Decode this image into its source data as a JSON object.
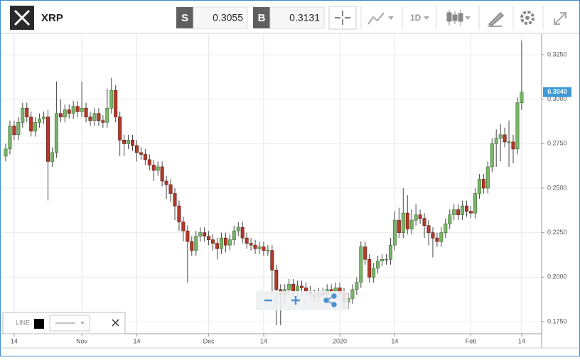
{
  "header": {
    "symbol": "XRP",
    "sell_label": "S",
    "sell_price": "0.3055",
    "buy_label": "B",
    "buy_price": "0.3131",
    "interval": "1D"
  },
  "line_panel": {
    "label": "LINE:"
  },
  "chart_data": {
    "type": "candlestick",
    "categories": [
      null,
      null,
      "14",
      null,
      null,
      null,
      null,
      null,
      null,
      null,
      null,
      null,
      null,
      null,
      null,
      null,
      null,
      null,
      "Nov",
      null,
      null,
      null,
      null,
      null,
      null,
      null,
      null,
      null,
      null,
      null,
      null,
      "14",
      null,
      null,
      null,
      null,
      null,
      null,
      null,
      null,
      null,
      null,
      null,
      null,
      null,
      null,
      null,
      null,
      "Dec",
      null,
      null,
      null,
      null,
      null,
      null,
      null,
      null,
      null,
      null,
      null,
      null,
      "14",
      null,
      null,
      null,
      null,
      null,
      null,
      null,
      null,
      null,
      null,
      null,
      null,
      null,
      null,
      null,
      null,
      null,
      "2020",
      null,
      null,
      null,
      null,
      null,
      null,
      null,
      null,
      null,
      null,
      null,
      null,
      "14",
      null,
      null,
      null,
      null,
      null,
      null,
      null,
      null,
      null,
      null,
      null,
      null,
      null,
      null,
      null,
      null,
      null,
      "Feb",
      null,
      null,
      null,
      null,
      null,
      null,
      null,
      null,
      null,
      null,
      null,
      "14"
    ],
    "open": [
      0.268,
      0.272,
      0.285,
      0.28,
      0.287,
      0.295,
      0.29,
      0.282,
      0.287,
      0.289,
      0.29,
      0.265,
      0.27,
      0.292,
      0.29,
      0.294,
      0.292,
      0.296,
      0.293,
      0.295,
      0.29,
      0.288,
      0.292,
      0.288,
      0.287,
      0.295,
      0.305,
      0.29,
      0.277,
      0.275,
      0.277,
      0.274,
      0.27,
      0.269,
      0.266,
      0.263,
      0.26,
      0.262,
      0.254,
      0.252,
      0.247,
      0.24,
      0.231,
      0.226,
      0.22,
      0.215,
      0.223,
      0.225,
      0.223,
      0.221,
      0.219,
      0.216,
      0.222,
      0.218,
      0.221,
      0.226,
      0.228,
      0.222,
      0.219,
      0.218,
      0.216,
      0.217,
      0.215,
      0.215,
      0.204,
      0.193,
      0.19,
      0.193,
      0.196,
      0.192,
      0.195,
      0.194,
      0.192,
      0.19,
      0.189,
      0.191,
      0.19,
      0.193,
      0.192,
      0.194,
      0.191,
      0.186,
      0.188,
      0.193,
      0.197,
      0.217,
      0.21,
      0.2,
      0.205,
      0.209,
      0.21,
      0.21,
      0.218,
      0.232,
      0.225,
      0.236,
      0.227,
      0.232,
      0.235,
      0.233,
      0.229,
      0.225,
      0.222,
      0.22,
      0.225,
      0.23,
      0.235,
      0.238,
      0.235,
      0.24,
      0.237,
      0.236,
      0.247,
      0.255,
      0.25,
      0.262,
      0.275,
      0.278,
      0.28,
      0.276,
      0.276,
      0.272,
      0.298
    ],
    "high": [
      0.275,
      0.288,
      0.288,
      0.29,
      0.298,
      0.298,
      0.293,
      0.29,
      0.292,
      0.293,
      0.294,
      0.273,
      0.31,
      0.3,
      0.297,
      0.297,
      0.299,
      0.299,
      0.31,
      0.298,
      0.293,
      0.295,
      0.295,
      0.291,
      0.306,
      0.312,
      0.308,
      0.293,
      0.28,
      0.28,
      0.28,
      0.277,
      0.273,
      0.272,
      0.269,
      0.266,
      0.265,
      0.265,
      0.257,
      0.255,
      0.25,
      0.243,
      0.234,
      0.229,
      0.223,
      0.226,
      0.228,
      0.228,
      0.226,
      0.224,
      0.222,
      0.225,
      0.225,
      0.224,
      0.229,
      0.231,
      0.231,
      0.225,
      0.222,
      0.221,
      0.22,
      0.22,
      0.218,
      0.218,
      0.207,
      0.196,
      0.196,
      0.199,
      0.199,
      0.198,
      0.198,
      0.197,
      0.195,
      0.193,
      0.194,
      0.194,
      0.196,
      0.196,
      0.197,
      0.197,
      0.194,
      0.191,
      0.196,
      0.2,
      0.22,
      0.22,
      0.213,
      0.208,
      0.212,
      0.213,
      0.213,
      0.222,
      0.237,
      0.239,
      0.25,
      0.246,
      0.238,
      0.241,
      0.238,
      0.236,
      0.232,
      0.228,
      0.225,
      0.228,
      0.233,
      0.238,
      0.241,
      0.241,
      0.243,
      0.243,
      0.24,
      0.25,
      0.258,
      0.258,
      0.265,
      0.278,
      0.283,
      0.286,
      0.284,
      0.288,
      0.28,
      0.301,
      0.333
    ],
    "low": [
      0.265,
      0.269,
      0.277,
      0.277,
      0.284,
      0.287,
      0.279,
      0.279,
      0.284,
      0.286,
      0.243,
      0.262,
      0.267,
      0.287,
      0.287,
      0.289,
      0.289,
      0.29,
      0.29,
      0.287,
      0.285,
      0.285,
      0.285,
      0.284,
      0.284,
      0.292,
      0.287,
      0.268,
      0.268,
      0.272,
      0.271,
      0.265,
      0.266,
      0.263,
      0.26,
      0.254,
      0.257,
      0.251,
      0.244,
      0.242,
      0.232,
      0.226,
      0.22,
      0.197,
      0.212,
      0.212,
      0.22,
      0.22,
      0.218,
      0.215,
      0.21,
      0.213,
      0.214,
      0.215,
      0.218,
      0.223,
      0.219,
      0.216,
      0.215,
      0.213,
      0.213,
      0.212,
      0.212,
      0.19,
      0.173,
      0.173,
      0.186,
      0.19,
      0.189,
      0.189,
      0.19,
      0.189,
      0.187,
      0.186,
      0.186,
      0.187,
      0.187,
      0.189,
      0.189,
      0.188,
      0.182,
      0.182,
      0.185,
      0.19,
      0.194,
      0.207,
      0.197,
      0.197,
      0.202,
      0.206,
      0.207,
      0.207,
      0.215,
      0.222,
      0.222,
      0.224,
      0.224,
      0.229,
      0.23,
      0.222,
      0.218,
      0.211,
      0.217,
      0.217,
      0.222,
      0.227,
      0.232,
      0.232,
      0.232,
      0.234,
      0.233,
      0.233,
      0.244,
      0.247,
      0.247,
      0.259,
      0.262,
      0.265,
      0.273,
      0.262,
      0.264,
      0.269,
      0.294
    ],
    "close": [
      0.272,
      0.285,
      0.28,
      0.287,
      0.295,
      0.29,
      0.282,
      0.287,
      0.289,
      0.29,
      0.265,
      0.27,
      0.292,
      0.29,
      0.294,
      0.292,
      0.296,
      0.293,
      0.295,
      0.29,
      0.288,
      0.292,
      0.288,
      0.287,
      0.295,
      0.305,
      0.29,
      0.277,
      0.275,
      0.277,
      0.274,
      0.27,
      0.269,
      0.266,
      0.263,
      0.26,
      0.262,
      0.254,
      0.252,
      0.247,
      0.24,
      0.231,
      0.226,
      0.22,
      0.215,
      0.223,
      0.225,
      0.223,
      0.221,
      0.219,
      0.216,
      0.222,
      0.218,
      0.221,
      0.226,
      0.228,
      0.222,
      0.219,
      0.218,
      0.216,
      0.217,
      0.215,
      0.215,
      0.204,
      0.193,
      0.19,
      0.193,
      0.196,
      0.192,
      0.195,
      0.194,
      0.192,
      0.19,
      0.189,
      0.191,
      0.19,
      0.193,
      0.192,
      0.194,
      0.191,
      0.186,
      0.188,
      0.193,
      0.197,
      0.217,
      0.21,
      0.2,
      0.205,
      0.209,
      0.21,
      0.21,
      0.218,
      0.232,
      0.225,
      0.236,
      0.227,
      0.232,
      0.235,
      0.233,
      0.229,
      0.225,
      0.222,
      0.22,
      0.225,
      0.23,
      0.235,
      0.238,
      0.235,
      0.24,
      0.237,
      0.236,
      0.247,
      0.255,
      0.25,
      0.262,
      0.275,
      0.278,
      0.28,
      0.276,
      0.276,
      0.272,
      0.298,
      0.304
    ],
    "up_color": "#7ab46a",
    "down_color": "#b2392a",
    "ylim": [
      0.1682,
      0.3366
    ],
    "yticks": [
      {
        "value": 0.175,
        "label": "0.1750"
      },
      {
        "value": 0.2,
        "label": "0.2000"
      },
      {
        "value": 0.225,
        "label": "0.2250"
      },
      {
        "value": 0.25,
        "label": "0.2500"
      },
      {
        "value": 0.275,
        "label": "0.2750"
      },
      {
        "value": 0.3,
        "label": "0.3000"
      },
      {
        "value": 0.325,
        "label": "0.3250"
      }
    ],
    "grid": true,
    "last_price": {
      "value": 0.304,
      "label": "0.3040"
    }
  }
}
